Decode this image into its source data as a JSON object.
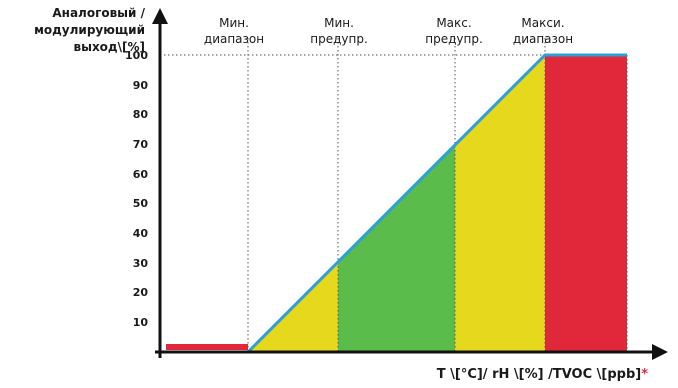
{
  "y_axis_label": [
    "Аналоговый /",
    "модулирующий",
    "выход\\[%]"
  ],
  "x_axis_label": "T \\[°C]/ rH \\[%] /TVOC \\[ppb]",
  "x_axis_marker": "*",
  "y_ticks": [
    "10",
    "20",
    "30",
    "40",
    "50",
    "60",
    "70",
    "80",
    "90",
    "100"
  ],
  "zones": [
    {
      "line1": "Мин.",
      "line2": "диапазон"
    },
    {
      "line1": "Мин.",
      "line2": "предупр."
    },
    {
      "line1": "Макс.",
      "line2": "предупр."
    },
    {
      "line1": "Макси.",
      "line2": "диапазон"
    }
  ],
  "colors": {
    "axis": "#111111",
    "ramp_line": "#2b9fd6",
    "low_range_bar": "#e0283a",
    "warning_fill": "#e6d81c",
    "normal_fill": "#5abc4a",
    "high_range_fill": "#e0283a",
    "guide_lines": "#555555"
  }
}
